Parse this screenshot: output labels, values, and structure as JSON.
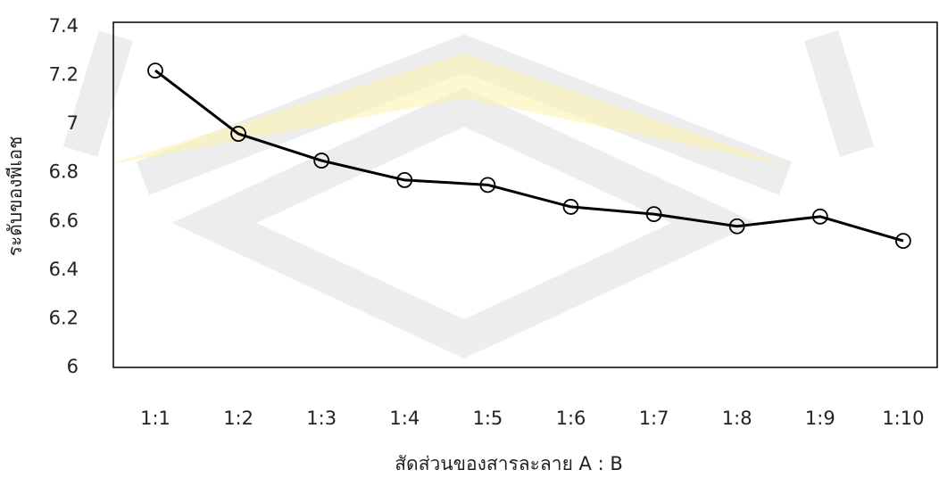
{
  "chart_data": {
    "type": "line",
    "x_label": "สัดส่วนของสารละลาย A : B",
    "y_label": "ระดับของพีเอช",
    "categories": [
      "1:1",
      "1:2",
      "1:3",
      "1:4",
      "1:5",
      "1:6",
      "1:7",
      "1:8",
      "1:9",
      "1:10"
    ],
    "values": [
      7.22,
      6.96,
      6.85,
      6.77,
      6.75,
      6.66,
      6.63,
      6.58,
      6.62,
      6.52
    ],
    "color": "#000000",
    "ylim": [
      6,
      7.4
    ],
    "yticks": [
      6,
      6.2,
      6.4,
      6.6,
      6.8,
      7,
      7.2,
      7.4
    ],
    "grid": false
  }
}
